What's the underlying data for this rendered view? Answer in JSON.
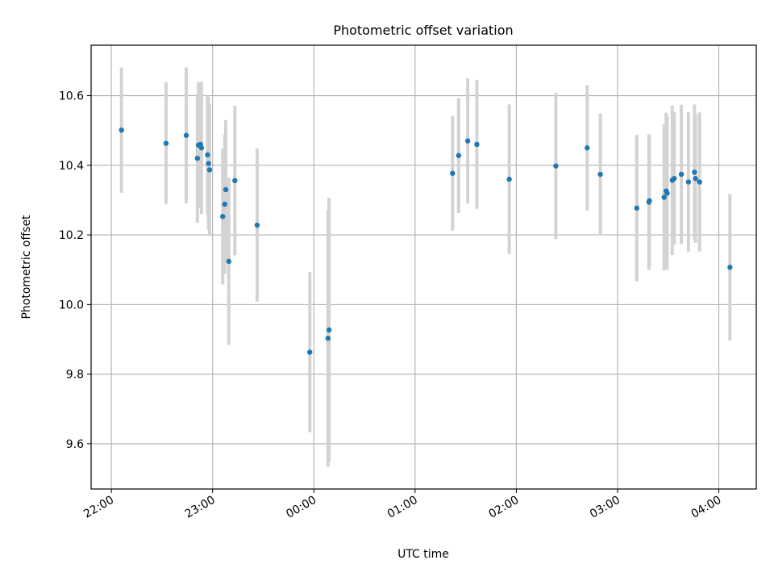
{
  "chart_data": {
    "type": "scatter",
    "title": "Photometric offset variation",
    "xlabel": "UTC time",
    "ylabel": "Photometric offset",
    "x_format": "time HH:MM (hours relative to 00:00 UTC)",
    "xlim": [
      -2.2,
      4.37
    ],
    "ylim": [
      9.47,
      10.745
    ],
    "xticks": [
      {
        "value": -2,
        "label": "22:00"
      },
      {
        "value": -1,
        "label": "23:00"
      },
      {
        "value": 0,
        "label": "00:00"
      },
      {
        "value": 1,
        "label": "01:00"
      },
      {
        "value": 2,
        "label": "02:00"
      },
      {
        "value": 3,
        "label": "03:00"
      },
      {
        "value": 4,
        "label": "04:00"
      }
    ],
    "yticks": [
      {
        "value": 9.6,
        "label": "9.6"
      },
      {
        "value": 9.8,
        "label": "9.8"
      },
      {
        "value": 10.0,
        "label": "10.0"
      },
      {
        "value": 10.2,
        "label": "10.2"
      },
      {
        "value": 10.4,
        "label": "10.4"
      },
      {
        "value": 10.6,
        "label": "10.6"
      }
    ],
    "grid": true,
    "colors": {
      "points": "#1f77b4",
      "errorbars": "#d3d3d3",
      "grid": "#b0b0b0",
      "axes": "#000000"
    },
    "points": [
      {
        "x": -1.9,
        "y": 10.501,
        "yerr": 0.18
      },
      {
        "x": -1.46,
        "y": 10.463,
        "yerr": 0.175
      },
      {
        "x": -1.26,
        "y": 10.486,
        "yerr": 0.195
      },
      {
        "x": -1.15,
        "y": 10.42,
        "yerr": 0.185
      },
      {
        "x": -1.14,
        "y": 10.458,
        "yerr": 0.18
      },
      {
        "x": -1.12,
        "y": 10.46,
        "yerr": 0.175
      },
      {
        "x": -1.11,
        "y": 10.45,
        "yerr": 0.19
      },
      {
        "x": -1.05,
        "y": 10.43,
        "yerr": 0.17
      },
      {
        "x": -1.04,
        "y": 10.405,
        "yerr": 0.19
      },
      {
        "x": -1.03,
        "y": 10.387,
        "yerr": 0.19
      },
      {
        "x": -0.9,
        "y": 10.253,
        "yerr": 0.195
      },
      {
        "x": -0.88,
        "y": 10.288,
        "yerr": 0.2
      },
      {
        "x": -0.87,
        "y": 10.33,
        "yerr": 0.2
      },
      {
        "x": -0.84,
        "y": 10.124,
        "yerr": 0.24
      },
      {
        "x": -0.78,
        "y": 10.356,
        "yerr": 0.215
      },
      {
        "x": -0.56,
        "y": 10.228,
        "yerr": 0.22
      },
      {
        "x": -0.04,
        "y": 9.863,
        "yerr": 0.23
      },
      {
        "x": 0.14,
        "y": 9.903,
        "yerr": 0.37
      },
      {
        "x": 0.15,
        "y": 9.927,
        "yerr": 0.38
      },
      {
        "x": 1.37,
        "y": 10.377,
        "yerr": 0.165
      },
      {
        "x": 1.43,
        "y": 10.428,
        "yerr": 0.165
      },
      {
        "x": 1.52,
        "y": 10.47,
        "yerr": 0.18
      },
      {
        "x": 1.61,
        "y": 10.46,
        "yerr": 0.185
      },
      {
        "x": 1.93,
        "y": 10.36,
        "yerr": 0.215
      },
      {
        "x": 2.39,
        "y": 10.398,
        "yerr": 0.21
      },
      {
        "x": 2.7,
        "y": 10.45,
        "yerr": 0.18
      },
      {
        "x": 2.83,
        "y": 10.374,
        "yerr": 0.175
      },
      {
        "x": 3.19,
        "y": 10.277,
        "yerr": 0.21
      },
      {
        "x": 3.31,
        "y": 10.294,
        "yerr": 0.195
      },
      {
        "x": 3.315,
        "y": 10.298,
        "yerr": 0.19
      },
      {
        "x": 3.46,
        "y": 10.308,
        "yerr": 0.21
      },
      {
        "x": 3.48,
        "y": 10.326,
        "yerr": 0.225
      },
      {
        "x": 3.49,
        "y": 10.32,
        "yerr": 0.22
      },
      {
        "x": 3.54,
        "y": 10.357,
        "yerr": 0.215
      },
      {
        "x": 3.56,
        "y": 10.362,
        "yerr": 0.19
      },
      {
        "x": 3.63,
        "y": 10.374,
        "yerr": 0.2
      },
      {
        "x": 3.7,
        "y": 10.352,
        "yerr": 0.2
      },
      {
        "x": 3.76,
        "y": 10.38,
        "yerr": 0.195
      },
      {
        "x": 3.77,
        "y": 10.362,
        "yerr": 0.185
      },
      {
        "x": 3.81,
        "y": 10.352,
        "yerr": 0.2
      },
      {
        "x": 4.11,
        "y": 10.107,
        "yerr": 0.21
      }
    ]
  }
}
